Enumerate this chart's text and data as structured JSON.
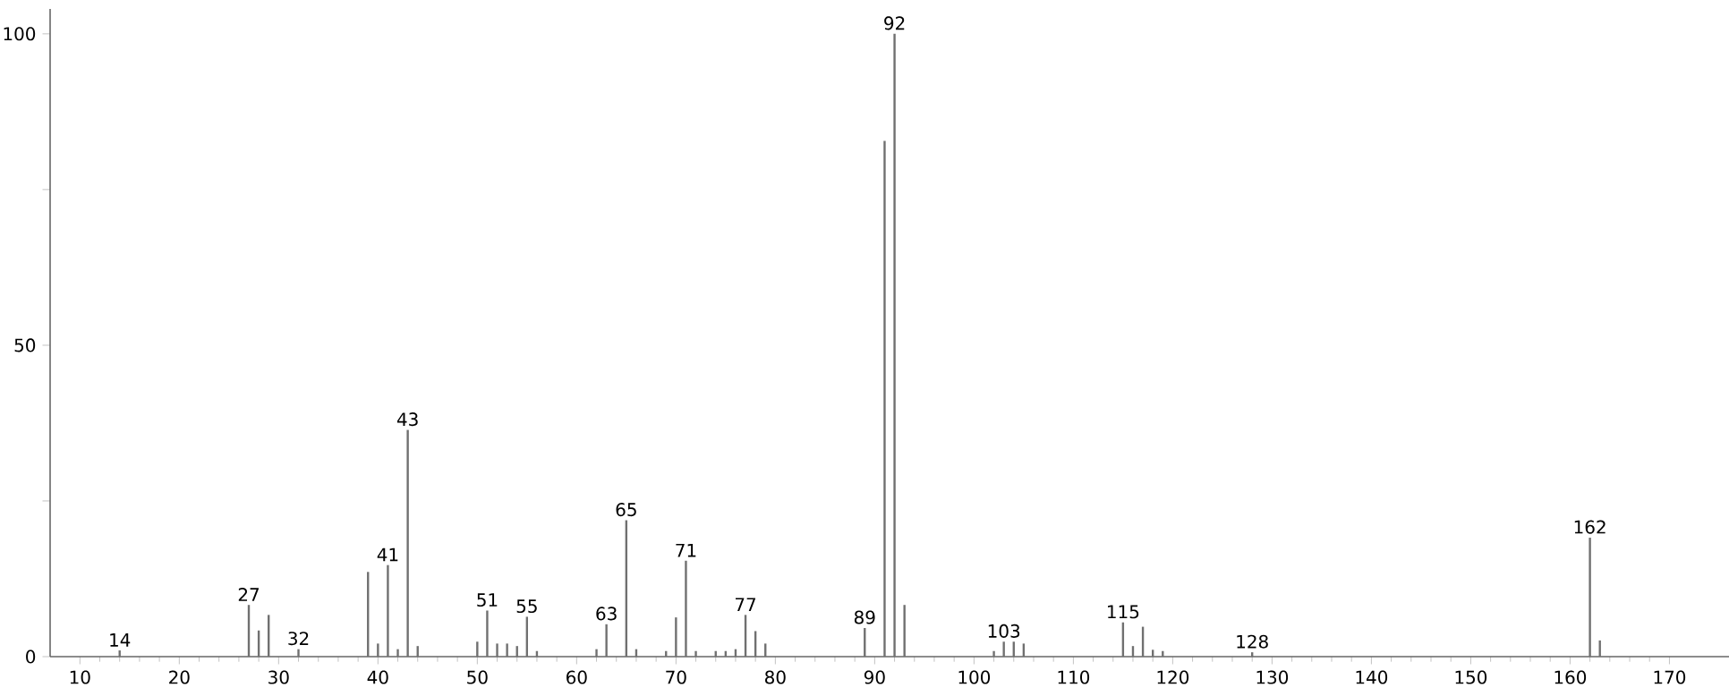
{
  "chart_data": {
    "type": "bar",
    "x": [
      14,
      27,
      28,
      29,
      32,
      39,
      40,
      41,
      42,
      43,
      44,
      50,
      51,
      52,
      53,
      54,
      55,
      56,
      62,
      63,
      65,
      66,
      69,
      70,
      71,
      72,
      74,
      75,
      76,
      77,
      78,
      79,
      89,
      91,
      92,
      93,
      102,
      103,
      104,
      105,
      115,
      116,
      117,
      118,
      119,
      128,
      162,
      163
    ],
    "values": [
      1,
      8.3,
      4.2,
      6.7,
      1.2,
      13.6,
      2.1,
      14.7,
      1.2,
      36.4,
      1.7,
      2.4,
      7.4,
      2.1,
      2.1,
      1.7,
      6.4,
      0.9,
      1.2,
      5.2,
      21.9,
      1.2,
      0.9,
      6.3,
      15.4,
      0.9,
      0.9,
      0.9,
      1.2,
      6.7,
      4.1,
      2.1,
      4.6,
      82.8,
      100,
      8.3,
      0.9,
      2.4,
      2.4,
      2.1,
      5.5,
      1.7,
      4.8,
      1.1,
      0.9,
      0.7,
      19.1,
      2.6
    ],
    "color": "#707070",
    "xlim": [
      7,
      176
    ],
    "xticks": [
      10,
      20,
      30,
      40,
      50,
      60,
      70,
      80,
      90,
      100,
      110,
      120,
      130,
      140,
      150,
      160,
      170
    ],
    "ylim": [
      0,
      104
    ],
    "yticks": [
      0,
      {
        "value": 25,
        "label": null
      },
      50,
      {
        "value": 75,
        "label": null
      },
      100
    ],
    "annotations": [
      {
        "text": "14",
        "x": 14,
        "y": 1
      },
      {
        "text": "27",
        "x": 27,
        "y": 8.3
      },
      {
        "text": "32",
        "x": 32,
        "y": 1.2
      },
      {
        "text": "41",
        "x": 41,
        "y": 14.7
      },
      {
        "text": "43",
        "x": 43,
        "y": 36.4
      },
      {
        "text": "51",
        "x": 51,
        "y": 7.4
      },
      {
        "text": "55",
        "x": 55,
        "y": 6.4
      },
      {
        "text": "63",
        "x": 63,
        "y": 5.2
      },
      {
        "text": "65",
        "x": 65,
        "y": 21.9
      },
      {
        "text": "71",
        "x": 71,
        "y": 15.4
      },
      {
        "text": "77",
        "x": 77,
        "y": 6.7
      },
      {
        "text": "89",
        "x": 89,
        "y": 4.6
      },
      {
        "text": "92",
        "x": 92,
        "y": 100
      },
      {
        "text": "103",
        "x": 103,
        "y": 2.4
      },
      {
        "text": "115",
        "x": 115,
        "y": 5.5
      },
      {
        "text": "128",
        "x": 128,
        "y": 0.7
      },
      {
        "text": "162",
        "x": 162,
        "y": 19.1
      }
    ]
  }
}
